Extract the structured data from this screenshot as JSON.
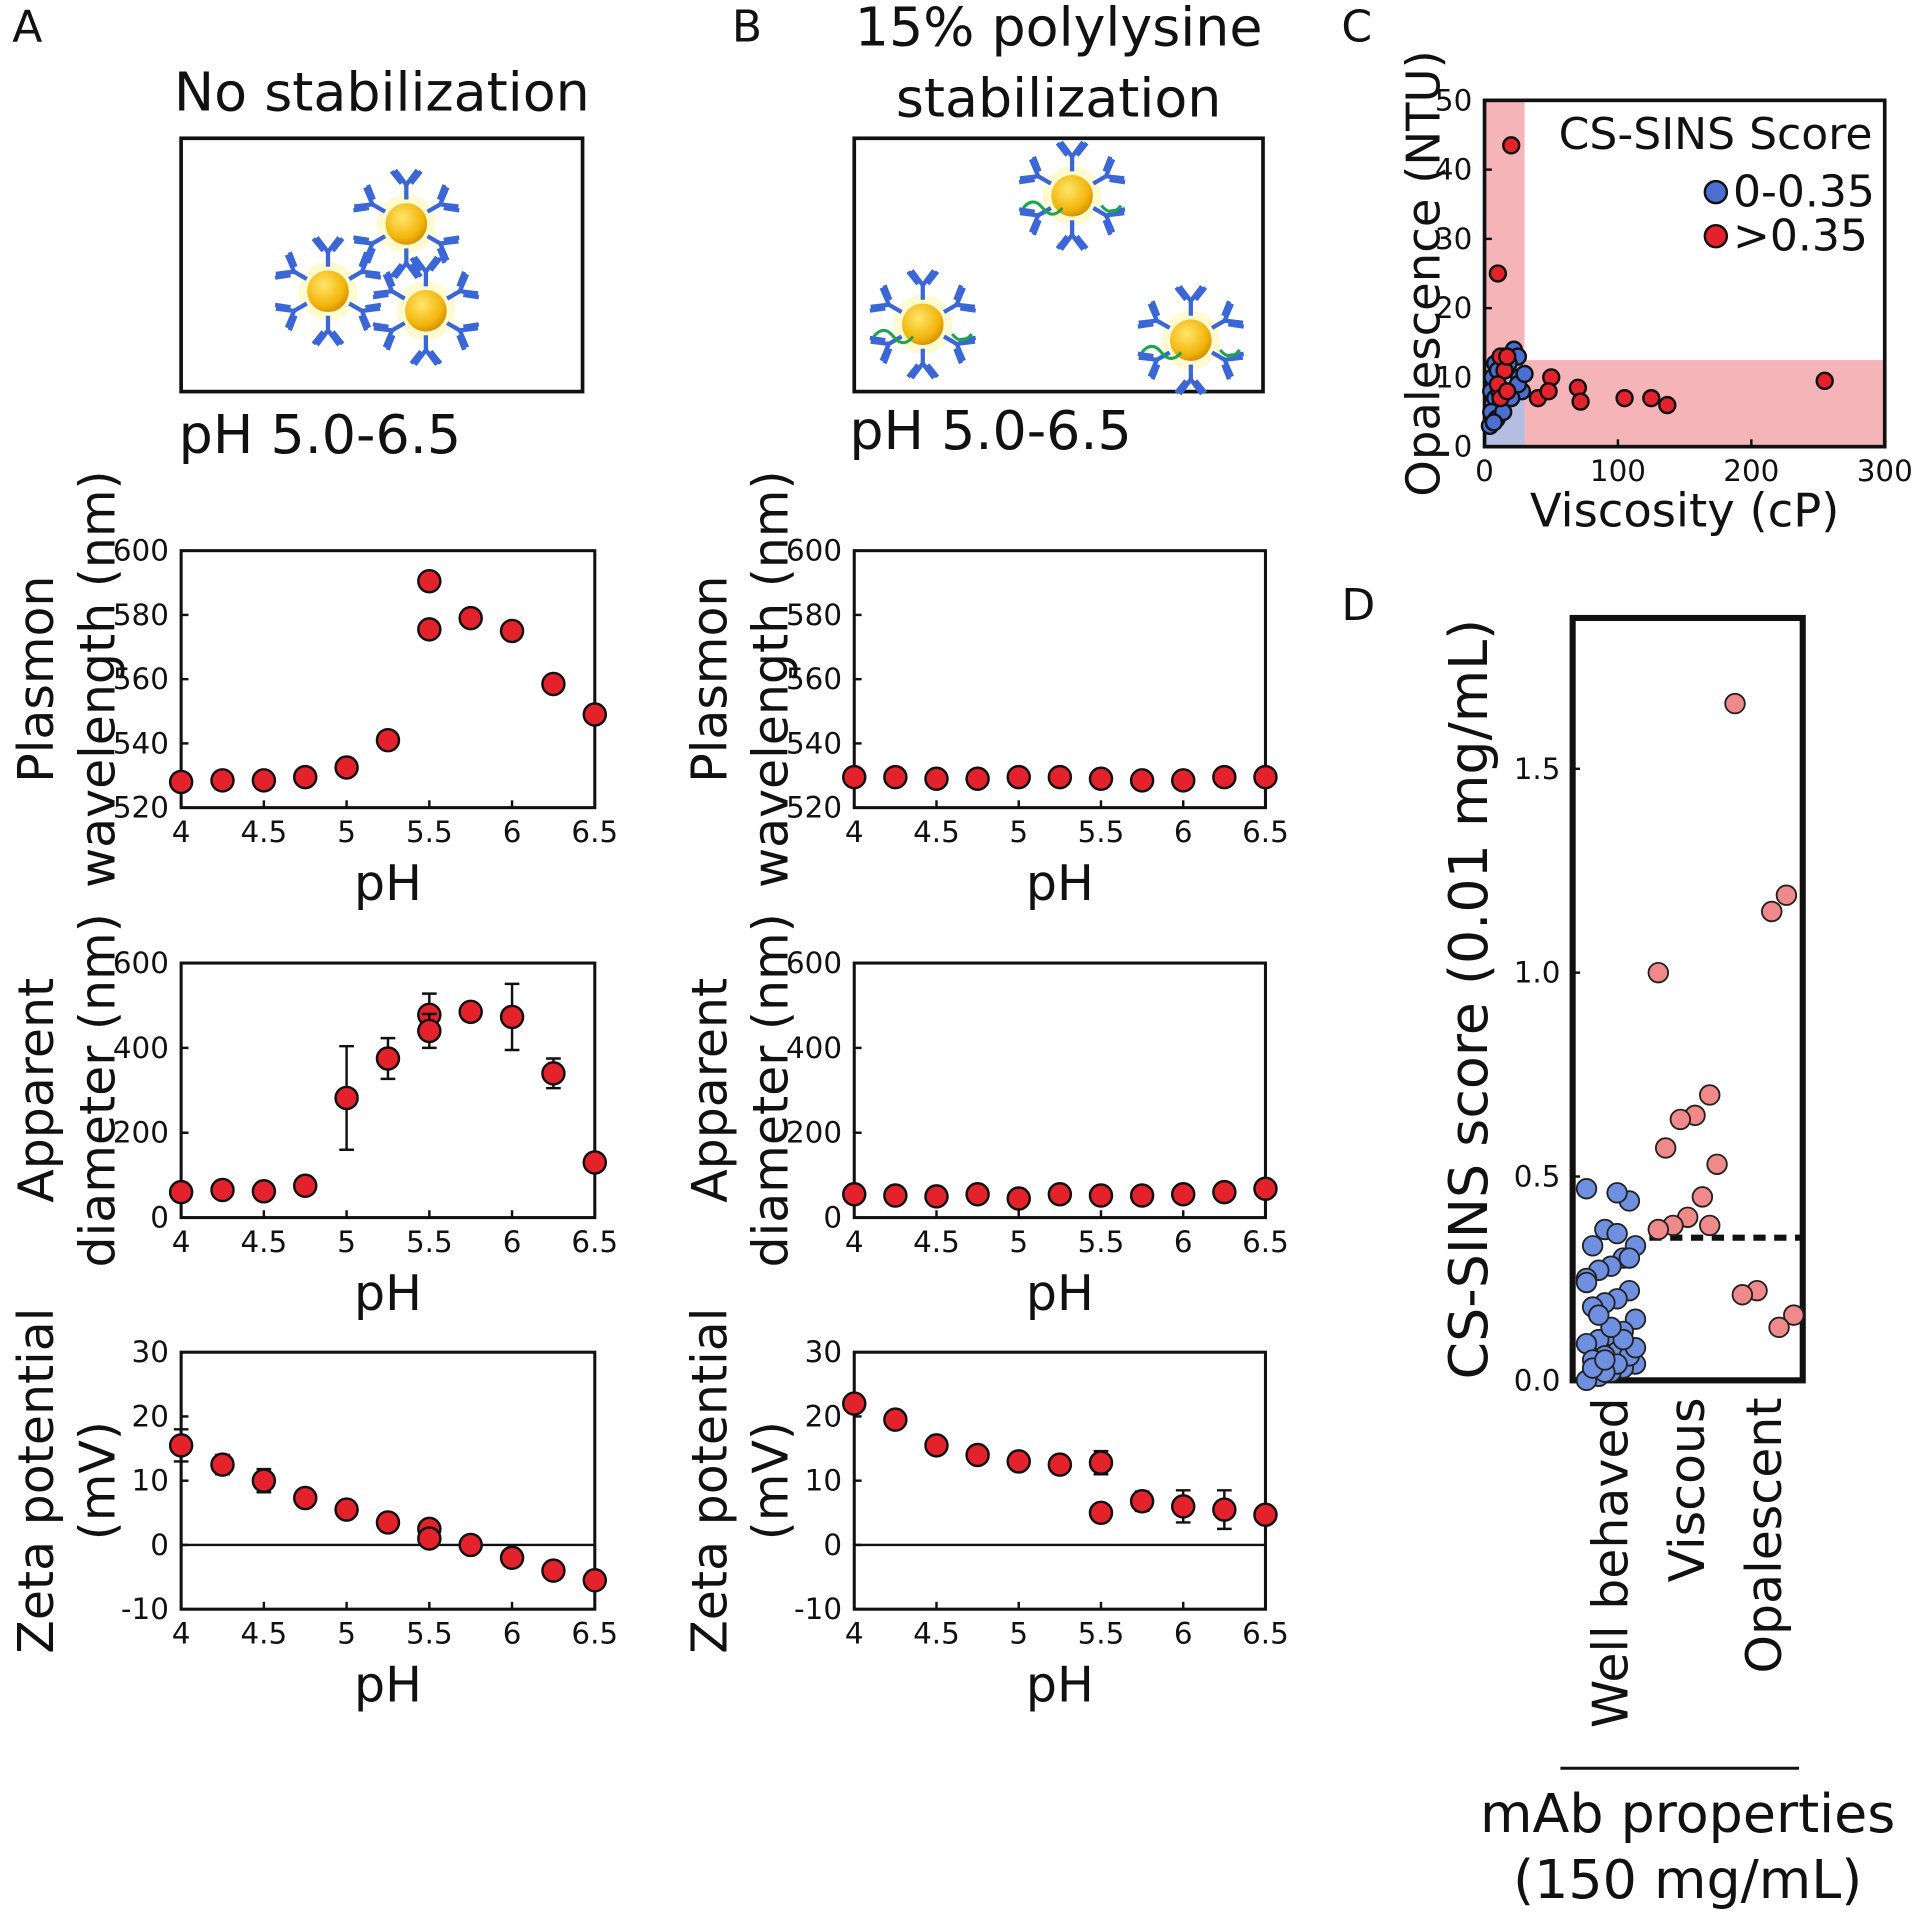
{
  "panel_labels": [
    "A",
    "B",
    "C",
    "D"
  ],
  "schematics": [
    {
      "title": [
        "No stabilization"
      ],
      "caption": "pH 5.0-6.5"
    },
    {
      "title": [
        "15% polylysine",
        "stabilization"
      ],
      "caption": "pH 5.0-6.5"
    }
  ],
  "chart_data": [
    {
      "type": "scatter",
      "ylabel": [
        "Plasmon",
        "wavelength (nm)"
      ],
      "xlabel": "pH",
      "xlim": [
        4,
        6.5
      ],
      "xticks": [
        4,
        4.5,
        5,
        5.5,
        6,
        6.5
      ],
      "ylim": [
        520,
        600
      ],
      "yticks": [
        520,
        540,
        560,
        580,
        600
      ],
      "series": [
        {
          "color": "#e3222b",
          "x": [
            4,
            4.25,
            4.5,
            4.75,
            5,
            5.25,
            5.5,
            5.5,
            5.75,
            6,
            6.25,
            6.5
          ],
          "values": [
            528,
            528.5,
            528.5,
            529.5,
            532.5,
            541,
            590.5,
            575.5,
            579,
            575,
            558.5,
            549
          ],
          "errors": [
            0,
            0,
            0,
            0,
            0,
            0,
            2.5,
            0,
            0,
            0,
            0,
            0
          ]
        }
      ]
    },
    {
      "type": "scatter",
      "ylabel": [
        "Apparent",
        "diameter (nm)"
      ],
      "xlabel": "pH",
      "xlim": [
        4,
        6.5
      ],
      "xticks": [
        4,
        4.5,
        5,
        5.5,
        6,
        6.5
      ],
      "ylim": [
        0,
        600
      ],
      "yticks": [
        0,
        200,
        400,
        600
      ],
      "series": [
        {
          "color": "#e3222b",
          "x": [
            4,
            4.25,
            4.5,
            4.75,
            5,
            5.25,
            5.5,
            5.5,
            5.75,
            6,
            6.25,
            6.5
          ],
          "values": [
            60,
            65,
            62,
            75,
            282,
            375,
            478,
            440,
            485,
            473,
            340,
            130
          ],
          "errors": [
            0,
            15,
            10,
            15,
            122,
            48,
            50,
            40,
            20,
            78,
            35,
            0
          ]
        }
      ]
    },
    {
      "type": "scatter",
      "ylabel": [
        "Zeta potential",
        "(mV)"
      ],
      "xlabel": "pH",
      "xlim": [
        4,
        6.5
      ],
      "xticks": [
        4,
        4.5,
        5,
        5.5,
        6,
        6.5
      ],
      "ylim": [
        -10,
        30
      ],
      "yticks": [
        -10,
        0,
        10,
        20,
        30
      ],
      "reference_line": 0,
      "series": [
        {
          "color": "#e3222b",
          "x": [
            4,
            4.25,
            4.5,
            4.75,
            5,
            5.25,
            5.5,
            5.5,
            5.75,
            6,
            6.25,
            6.5
          ],
          "values": [
            15.5,
            12.5,
            10,
            7.3,
            5.5,
            3.5,
            2.5,
            1,
            0,
            -2,
            -4,
            -5.5
          ],
          "errors": [
            2.5,
            1.5,
            1.8,
            0,
            0,
            0,
            0,
            0,
            0,
            0,
            0,
            0
          ]
        }
      ]
    },
    {
      "type": "scatter",
      "ylabel": [
        "Plasmon",
        "wavelength (nm)"
      ],
      "xlabel": "pH",
      "xlim": [
        4,
        6.5
      ],
      "xticks": [
        4,
        4.5,
        5,
        5.5,
        6,
        6.5
      ],
      "ylim": [
        520,
        600
      ],
      "yticks": [
        520,
        540,
        560,
        580,
        600
      ],
      "series": [
        {
          "color": "#e3222b",
          "x": [
            4,
            4.25,
            4.5,
            4.75,
            5,
            5.25,
            5.5,
            5.75,
            6,
            6.25,
            6.5
          ],
          "values": [
            529.5,
            529.5,
            529,
            529,
            529.5,
            529.5,
            529,
            528.5,
            528.5,
            529.5,
            529.5
          ]
        }
      ]
    },
    {
      "type": "scatter",
      "ylabel": [
        "Apparent",
        "diameter (nm)"
      ],
      "xlabel": "pH",
      "xlim": [
        4,
        6.5
      ],
      "xticks": [
        4,
        4.5,
        5,
        5.5,
        6,
        6.5
      ],
      "ylim": [
        0,
        600
      ],
      "yticks": [
        0,
        200,
        400,
        600
      ],
      "series": [
        {
          "color": "#e3222b",
          "x": [
            4,
            4.25,
            4.5,
            4.75,
            5,
            5.25,
            5.5,
            5.75,
            6,
            6.25,
            6.5
          ],
          "values": [
            55,
            52,
            50,
            55,
            45,
            55,
            52,
            52,
            55,
            60,
            68
          ]
        }
      ]
    },
    {
      "type": "scatter",
      "ylabel": [
        "Zeta potential",
        "(mV)"
      ],
      "xlabel": "pH",
      "xlim": [
        4,
        6.5
      ],
      "xticks": [
        4,
        4.5,
        5,
        5.5,
        6,
        6.5
      ],
      "ylim": [
        -10,
        30
      ],
      "yticks": [
        -10,
        0,
        10,
        20,
        30
      ],
      "reference_line": 0,
      "series": [
        {
          "color": "#e3222b",
          "x": [
            4,
            4.25,
            4.5,
            4.75,
            5,
            5.25,
            5.5,
            5.5,
            5.75,
            6,
            6.25,
            6.5
          ],
          "values": [
            22,
            19.5,
            15.5,
            14,
            13,
            12.5,
            12.8,
            5,
            6.8,
            6,
            5.5,
            4.7
          ],
          "errors": [
            0,
            0,
            0,
            0,
            0,
            0,
            1.8,
            0,
            1.5,
            2.5,
            3,
            0
          ]
        }
      ]
    },
    {
      "type": "scatter",
      "ylabel": [
        "Opalescence (NTU)"
      ],
      "xlabel": "Viscosity (cP)",
      "xlim": [
        0,
        300
      ],
      "xticks": [
        0,
        100,
        200,
        300
      ],
      "ylim": [
        0,
        50
      ],
      "yticks": [
        0,
        10,
        20,
        30,
        40,
        50
      ],
      "highlight": {
        "x": 30,
        "y": 12.5,
        "color": "#f5b5b8",
        "overlap_color": "#b6bde3"
      },
      "legend_title": "CS-SINS Score",
      "series": [
        {
          "name": "0-0.35",
          "color": "#4a6fd0",
          "x": [
            22,
            25,
            8,
            15,
            18,
            6,
            10,
            26,
            28,
            5,
            8,
            12,
            5,
            9,
            14,
            20,
            4,
            7,
            11,
            25,
            30
          ],
          "values": [
            14,
            13,
            12,
            13,
            12,
            10,
            11,
            10,
            8,
            8,
            7,
            6,
            5,
            4,
            5,
            7,
            3,
            3.5,
            8,
            9,
            10.5
          ]
        },
        {
          "name": ">0.35",
          "color": "#e3222b",
          "x": [
            20,
            10,
            12,
            15,
            17,
            10,
            12,
            40,
            50,
            48,
            70,
            72,
            105,
            125,
            137,
            255,
            17
          ],
          "values": [
            43.5,
            25,
            13,
            11,
            13,
            9,
            7,
            7,
            10,
            8,
            8.5,
            6.5,
            7,
            7,
            6,
            9.5,
            8
          ]
        }
      ]
    },
    {
      "type": "strip",
      "ylabel": [
        "CS-SINS score (0.01 mg/mL)"
      ],
      "xlabel": [
        "mAb properties",
        "(150 mg/mL)"
      ],
      "categories": [
        "Well behaved",
        "Viscous",
        "Opalescent"
      ],
      "ylim": [
        0,
        1.87
      ],
      "yticks": [
        {
          "value": 0,
          "label": "0.0"
        },
        0.5,
        {
          "value": 1,
          "label": "1.0"
        },
        1.5
      ],
      "threshold": 0.35,
      "series": [
        {
          "color": "#6f8fe0",
          "values": [
            0.47,
            0.44,
            0.46,
            0.37,
            0.33,
            0.33,
            0.3,
            0.28,
            0.27,
            0.25,
            0.22,
            0.2,
            0.19,
            0.18,
            0.15,
            0.12,
            0.11,
            0.1,
            0.09,
            0.08,
            0.07,
            0.06,
            0.05,
            0.04,
            0.03,
            0.02,
            0.01,
            0.0,
            0.06,
            0.04,
            0.02,
            0.03,
            0.08,
            0.1,
            0.13,
            0.16,
            0.24,
            0.3,
            0.36,
            0.05
          ]
        },
        {
          "color": "#f08a8a",
          "values": [
            1.0,
            0.7,
            0.65,
            0.64,
            0.57,
            0.53,
            0.45,
            0.4,
            0.38,
            0.37,
            0.38
          ]
        },
        {
          "color": "#f08a8a",
          "values": [
            1.66,
            1.19,
            1.15,
            0.22,
            0.21,
            0.16,
            0.13
          ]
        }
      ]
    }
  ]
}
